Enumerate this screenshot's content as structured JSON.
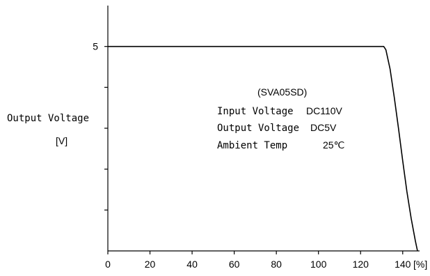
{
  "chart_data": {
    "type": "line",
    "xlabel_unit": "[%]",
    "ylabel": "Output Voltage",
    "ylabel_unit": "[V]",
    "xlim": [
      0,
      148
    ],
    "ylim": [
      0,
      6
    ],
    "x_ticks": [
      "0",
      "20",
      "40",
      "60",
      "80",
      "100",
      "120",
      "140"
    ],
    "x_tick_values": [
      0,
      20,
      40,
      60,
      80,
      100,
      120,
      140
    ],
    "y_tick_labels": [
      "5"
    ],
    "y_tick_label_values": [
      5
    ],
    "y_minor_ticks": [
      1,
      2,
      3,
      4,
      5
    ],
    "grid": false,
    "series": [
      {
        "x": [
          0,
          131,
          132,
          134,
          136,
          138,
          140,
          142,
          144,
          146,
          147
        ],
        "y": [
          5,
          5,
          4.92,
          4.45,
          3.75,
          3.0,
          2.2,
          1.45,
          0.8,
          0.25,
          0
        ]
      }
    ],
    "annotation": {
      "model": "(SVA05SD)",
      "lines": [
        {
          "label": "Input Voltage",
          "value": "DC110V"
        },
        {
          "label": "Output Voltage",
          "value": "DC5V"
        },
        {
          "label": "Ambient Temp",
          "value": "25℃"
        }
      ]
    },
    "colors": {
      "line": "#000000",
      "axis": "#000000"
    }
  }
}
